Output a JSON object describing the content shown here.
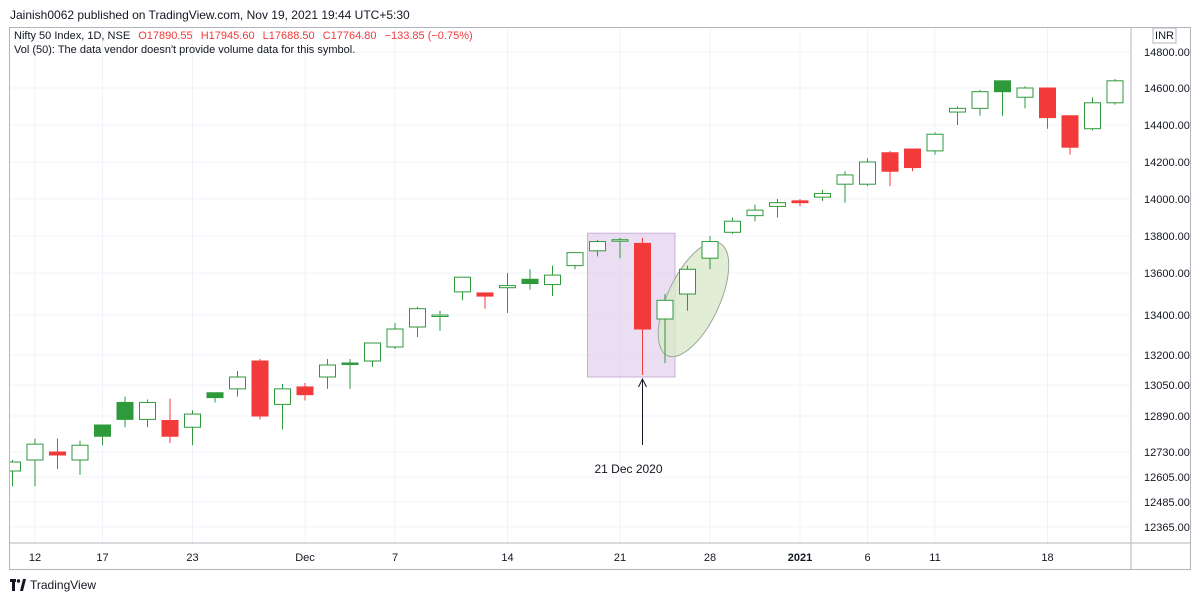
{
  "header": {
    "published_line": "Jainish0062 published on TradingView.com, Nov 19, 2021 19:44 UTC+5:30"
  },
  "legend": {
    "symbol_line": "Nifty 50 Index, 1D, NSE",
    "open": "O17890.55",
    "high": "H17945.60",
    "low": "L17688.50",
    "close": "C17764.80",
    "change": "−133.85 (−0.75%)",
    "volume_line": "Vol (50): The data vendor doesn't provide volume data for this symbol."
  },
  "currency_label": "INR",
  "footer": {
    "brand": "TradingView"
  },
  "colors": {
    "up": "#2e9a3b",
    "down": "#f23a3a",
    "highlight_box": "#e4d3ee",
    "highlight_ellipse": "#d9e8c9"
  },
  "annotation": {
    "label": "21 Dec 2020"
  },
  "chart_data": {
    "type": "candlestick",
    "ylim": [
      12300,
      14950
    ],
    "y_ticks": [
      "14800.00",
      "14600.00",
      "14400.00",
      "14200.00",
      "14000.00",
      "13800.00",
      "13600.00",
      "13400.00",
      "13200.00",
      "13050.00",
      "12890.00",
      "12730.00",
      "12605.00",
      "12485.00",
      "12365.00"
    ],
    "x_ticks": [
      {
        "label": "12",
        "i": 1,
        "bold": false
      },
      {
        "label": "17",
        "i": 4,
        "bold": false
      },
      {
        "label": "23",
        "i": 8,
        "bold": false
      },
      {
        "label": "Dec",
        "i": 13,
        "bold": false
      },
      {
        "label": "7",
        "i": 17,
        "bold": false
      },
      {
        "label": "14",
        "i": 22,
        "bold": false
      },
      {
        "label": "21",
        "i": 27,
        "bold": false
      },
      {
        "label": "28",
        "i": 31,
        "bold": false
      },
      {
        "label": "2021",
        "i": 35,
        "bold": true
      },
      {
        "label": "6",
        "i": 38,
        "bold": false
      },
      {
        "label": "11",
        "i": 41,
        "bold": false
      },
      {
        "label": "18",
        "i": 46,
        "bold": false
      }
    ],
    "candles": [
      {
        "o": 12635,
        "h": 12690,
        "l": 12560,
        "c": 12680
      },
      {
        "o": 12690,
        "h": 12790,
        "l": 12560,
        "c": 12765
      },
      {
        "o": 12730,
        "h": 12790,
        "l": 12645,
        "c": 12715
      },
      {
        "o": 12690,
        "h": 12780,
        "l": 12615,
        "c": 12760
      },
      {
        "o": 12800,
        "h": 12840,
        "l": 12760,
        "c": 12850
      },
      {
        "o": 12875,
        "h": 12990,
        "l": 12840,
        "c": 12960
      },
      {
        "o": 12875,
        "h": 12975,
        "l": 12840,
        "c": 12960
      },
      {
        "o": 12870,
        "h": 12980,
        "l": 12770,
        "c": 12800
      },
      {
        "o": 12840,
        "h": 12920,
        "l": 12760,
        "c": 12900
      },
      {
        "o": 12985,
        "h": 13010,
        "l": 12960,
        "c": 13010
      },
      {
        "o": 13030,
        "h": 13120,
        "l": 12990,
        "c": 13090
      },
      {
        "o": 13170,
        "h": 13180,
        "l": 12875,
        "c": 12890
      },
      {
        "o": 12950,
        "h": 13055,
        "l": 12830,
        "c": 13030
      },
      {
        "o": 13040,
        "h": 13060,
        "l": 12970,
        "c": 13000
      },
      {
        "o": 13090,
        "h": 13180,
        "l": 13030,
        "c": 13150
      },
      {
        "o": 13160,
        "h": 13180,
        "l": 13030,
        "c": 13160
      },
      {
        "o": 13170,
        "h": 13250,
        "l": 13140,
        "c": 13260
      },
      {
        "o": 13240,
        "h": 13360,
        "l": 13230,
        "c": 13330
      },
      {
        "o": 13340,
        "h": 13440,
        "l": 13290,
        "c": 13430
      },
      {
        "o": 13400,
        "h": 13420,
        "l": 13320,
        "c": 13400
      },
      {
        "o": 13510,
        "h": 13580,
        "l": 13470,
        "c": 13580
      },
      {
        "o": 13505,
        "h": 13500,
        "l": 13430,
        "c": 13490
      },
      {
        "o": 13530,
        "h": 13600,
        "l": 13410,
        "c": 13540
      },
      {
        "o": 13550,
        "h": 13620,
        "l": 13520,
        "c": 13570
      },
      {
        "o": 13545,
        "h": 13640,
        "l": 13490,
        "c": 13590
      },
      {
        "o": 13640,
        "h": 13710,
        "l": 13620,
        "c": 13710
      },
      {
        "o": 13720,
        "h": 13780,
        "l": 13690,
        "c": 13770
      },
      {
        "o": 13780,
        "h": 13790,
        "l": 13680,
        "c": 13780
      },
      {
        "o": 13760,
        "h": 13790,
        "l": 13100,
        "c": 13330
      },
      {
        "o": 13380,
        "h": 13500,
        "l": 13160,
        "c": 13470
      },
      {
        "o": 13500,
        "h": 13640,
        "l": 13420,
        "c": 13620
      },
      {
        "o": 13680,
        "h": 13800,
        "l": 13620,
        "c": 13770
      },
      {
        "o": 13820,
        "h": 13900,
        "l": 13810,
        "c": 13880
      },
      {
        "o": 13910,
        "h": 13970,
        "l": 13880,
        "c": 13940
      },
      {
        "o": 13960,
        "h": 14000,
        "l": 13900,
        "c": 13980
      },
      {
        "o": 13990,
        "h": 14000,
        "l": 13960,
        "c": 13980
      },
      {
        "o": 14010,
        "h": 14050,
        "l": 13990,
        "c": 14030
      },
      {
        "o": 14080,
        "h": 14150,
        "l": 13980,
        "c": 14130
      },
      {
        "o": 14080,
        "h": 14220,
        "l": 14070,
        "c": 14200
      },
      {
        "o": 14250,
        "h": 14260,
        "l": 14070,
        "c": 14150
      },
      {
        "o": 14270,
        "h": 14270,
        "l": 14150,
        "c": 14170
      },
      {
        "o": 14260,
        "h": 14360,
        "l": 14240,
        "c": 14350
      },
      {
        "o": 14470,
        "h": 14500,
        "l": 14400,
        "c": 14490
      },
      {
        "o": 14490,
        "h": 14590,
        "l": 14450,
        "c": 14580
      },
      {
        "o": 14580,
        "h": 14620,
        "l": 14450,
        "c": 14640
      },
      {
        "o": 14550,
        "h": 14610,
        "l": 14490,
        "c": 14600
      },
      {
        "o": 14600,
        "h": 14600,
        "l": 14380,
        "c": 14440
      },
      {
        "o": 14450,
        "h": 14450,
        "l": 14240,
        "c": 14280
      },
      {
        "o": 14380,
        "h": 14550,
        "l": 14370,
        "c": 14520
      },
      {
        "o": 14520,
        "h": 14650,
        "l": 14510,
        "c": 14640
      }
    ]
  }
}
